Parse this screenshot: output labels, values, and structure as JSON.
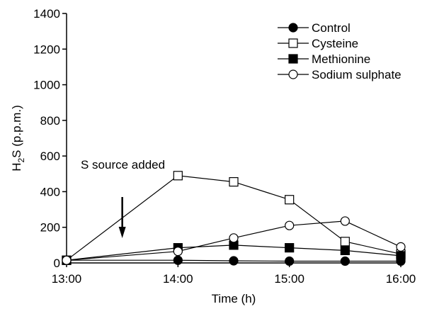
{
  "chart_data": {
    "type": "line",
    "xlabel": "Time (h)",
    "ylabel": {
      "main": "H",
      "sub": "2",
      "rest": "S (p.p.m.)"
    },
    "x_ticks": [
      {
        "value": 13.0,
        "label": "13:00"
      },
      {
        "value": 14.0,
        "label": "14:00"
      },
      {
        "value": 15.0,
        "label": "15:00"
      },
      {
        "value": 16.0,
        "label": "16:00"
      }
    ],
    "x_range": [
      13.0,
      16.0
    ],
    "ylim": [
      0,
      1400
    ],
    "y_ticks": [
      0,
      200,
      400,
      600,
      800,
      1000,
      1200,
      1400
    ],
    "grid": false,
    "legend_position": "top-right",
    "annotation": {
      "text": "S source added",
      "x": 13.5
    },
    "series": [
      {
        "name": "Control",
        "marker": "circle-filled",
        "x": [
          13.0,
          14.0,
          14.5,
          15.0,
          15.5,
          16.0
        ],
        "y": [
          15,
          15,
          12,
          10,
          10,
          10
        ]
      },
      {
        "name": "Cysteine",
        "marker": "square-open",
        "x": [
          13.0,
          14.0,
          14.5,
          15.0,
          15.5,
          16.0
        ],
        "y": [
          15,
          490,
          455,
          355,
          120,
          50
        ]
      },
      {
        "name": "Methionine",
        "marker": "square-filled",
        "x": [
          13.0,
          14.0,
          14.5,
          15.0,
          15.5,
          16.0
        ],
        "y": [
          15,
          85,
          100,
          85,
          70,
          40
        ]
      },
      {
        "name": "Sodium sulphate",
        "marker": "circle-open",
        "x": [
          13.0,
          14.0,
          14.5,
          15.0,
          15.5,
          16.0
        ],
        "y": [
          15,
          65,
          140,
          210,
          235,
          90
        ]
      }
    ]
  }
}
